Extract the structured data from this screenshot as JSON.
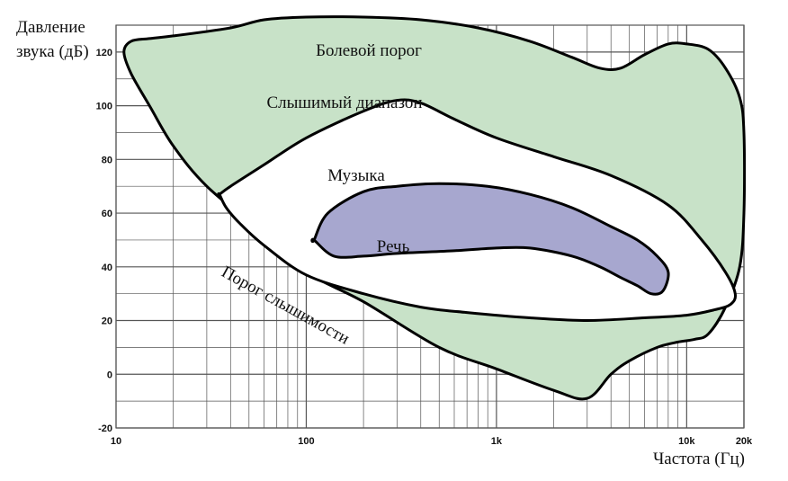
{
  "chart_data": {
    "type": "area",
    "ylabel": "Давление звука (дБ)",
    "ylabel_lines": [
      "Давление",
      "звука (дБ)"
    ],
    "xlabel": "Частота (Гц)",
    "x_scale": "log",
    "xlim": [
      10,
      20000
    ],
    "ylim": [
      -20,
      130
    ],
    "grid": true,
    "x_ticks": [
      10,
      100,
      1000,
      10000,
      20000
    ],
    "x_tick_labels": [
      "10",
      "100",
      "1k",
      "10k",
      "20k"
    ],
    "y_ticks": [
      -20,
      0,
      20,
      40,
      60,
      80,
      100,
      120
    ],
    "y_tick_labels": [
      "-20",
      "0",
      "20",
      "40",
      "60",
      "80",
      "100",
      "120"
    ],
    "labels": {
      "pain_threshold": "Болевой порог",
      "audible_range": "Слышимый диапазон",
      "music": "Музыка",
      "speech": "Речь",
      "hearing_threshold": "Порог слышимости"
    },
    "colors": {
      "audible_fill": "#c8e2c8",
      "speech_fill": "#a7a7cf",
      "music_fill": "#ffffff",
      "outline": "#000000",
      "grid": "#555555"
    },
    "series": [
      {
        "name": "Слышимый диапазон",
        "role": "audible",
        "x": [
          12,
          15,
          20,
          40,
          60,
          100,
          200,
          400,
          800,
          1500,
          2500,
          3500,
          4500,
          6000,
          8000,
          10000,
          13000,
          16000,
          19000,
          20000,
          20000,
          19000,
          16000,
          13000,
          11000,
          9000,
          7000,
          5000,
          4000,
          3000,
          2000,
          1000,
          500,
          200,
          100,
          60,
          30,
          20,
          15,
          12,
          11
        ],
        "y": [
          124,
          125,
          126,
          129,
          132,
          133,
          133,
          132,
          129,
          124,
          118,
          114,
          114,
          119,
          123,
          123,
          121,
          114,
          103,
          90,
          60,
          40,
          25,
          15,
          13,
          12,
          10,
          5,
          0,
          -9,
          -6,
          2,
          10,
          27,
          38,
          52,
          70,
          85,
          100,
          112,
          120
        ]
      },
      {
        "name": "Музыка",
        "role": "music",
        "x": [
          35,
          40,
          60,
          100,
          200,
          300,
          400,
          600,
          1000,
          2000,
          4000,
          8000,
          12000,
          16000,
          18000,
          17000,
          14000,
          10000,
          6000,
          3000,
          1500,
          700,
          400,
          200,
          100,
          60,
          45,
          38,
          35
        ],
        "y": [
          67,
          70,
          78,
          88,
          98,
          102,
          101,
          95,
          88,
          81,
          74,
          63,
          50,
          38,
          30,
          26,
          24,
          22,
          21,
          20,
          21,
          23,
          25,
          30,
          37,
          48,
          56,
          62,
          67
        ]
      },
      {
        "name": "Речь",
        "role": "speech",
        "x": [
          110,
          130,
          200,
          300,
          500,
          900,
          1500,
          2500,
          4000,
          5500,
          7000,
          8000,
          7500,
          6500,
          5500,
          4500,
          3500,
          2500,
          1500,
          1000,
          600,
          300,
          200,
          140,
          110
        ],
        "y": [
          50,
          60,
          68,
          70,
          71,
          70,
          67,
          62,
          55,
          50,
          44,
          38,
          31,
          30,
          33,
          36,
          40,
          44,
          47,
          47,
          46,
          45,
          44,
          44,
          50
        ]
      }
    ]
  }
}
